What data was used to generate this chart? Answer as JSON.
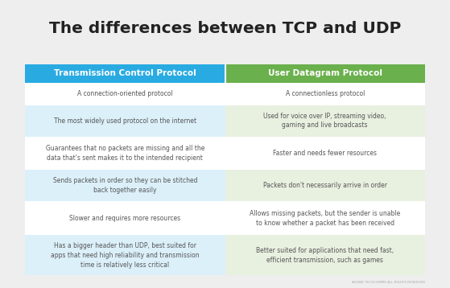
{
  "title": "The differences between TCP and UDP",
  "col1_header": "Transmission Control Protocol",
  "col2_header": "User Datagram Protocol",
  "header_color_left": "#29ABE2",
  "header_color_right": "#6AB04C",
  "header_text_color": "#FFFFFF",
  "bg_color": "#EEEEEE",
  "table_bg": "#FFFFFF",
  "row_shaded_left": "#DCF0FA",
  "row_shaded_right": "#E8F0E0",
  "row_plain": "#FFFFFF",
  "text_color": "#555555",
  "title_color": "#222222",
  "rows": [
    [
      "A connection-oriented protocol",
      "A connectionless protocol"
    ],
    [
      "The most widely used protocol on the internet",
      "Used for voice over IP, streaming video,\ngaming and live broadcasts"
    ],
    [
      "Guarantees that no packets are missing and all the\ndata that's sent makes it to the intended recipient",
      "Faster and needs fewer resources"
    ],
    [
      "Sends packets in order so they can be stitched\nback together easily",
      "Packets don't necessarily arrive in order"
    ],
    [
      "Slower and requires more resources",
      "Allows missing packets, but the sender is unable\nto know whether a packet has been received"
    ],
    [
      "Has a bigger header than UDP, best suited for\napps that need high reliability and transmission\ntime is relatively less critical",
      "Better suited for applications that need fast,\nefficient transmission, such as games"
    ]
  ],
  "footer_text": "ADOBE TECHCOMMS ALL RIGHTS RESERVED",
  "row_heights_raw": [
    1.0,
    1.4,
    1.5,
    1.4,
    1.5,
    1.8
  ],
  "figsize": [
    5.59,
    3.58
  ],
  "dpi": 100
}
